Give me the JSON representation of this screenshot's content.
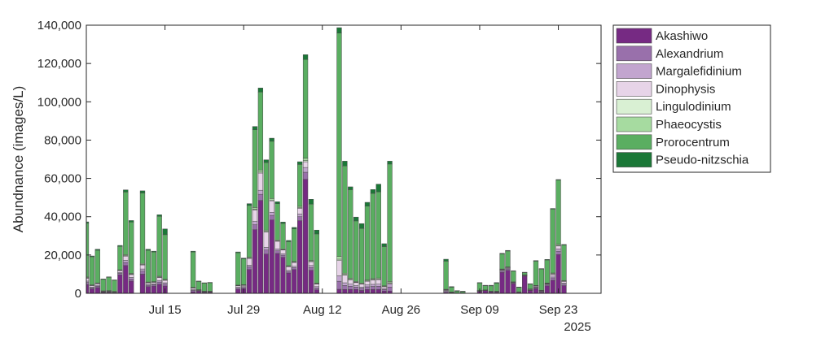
{
  "chart_data": {
    "type": "bar",
    "stacked": true,
    "title": "",
    "xlabel": "",
    "ylabel": "Abundnance (images/L)",
    "year_label": "2025",
    "year": 2025,
    "ylim": [
      0,
      140000
    ],
    "yticks": [
      0,
      20000,
      40000,
      60000,
      80000,
      100000,
      120000,
      140000
    ],
    "ytick_labels": [
      "0",
      "20,000",
      "40,000",
      "60,000",
      "80,000",
      "100,000",
      "120,000",
      "140,000"
    ],
    "xlim": [
      "2025-07-01",
      "2025-09-30"
    ],
    "xticks": [
      {
        "date": "07-15",
        "label": "Jul 15"
      },
      {
        "date": "07-29",
        "label": "Jul 29"
      },
      {
        "date": "08-12",
        "label": "Aug 12"
      },
      {
        "date": "08-26",
        "label": "Aug 26"
      },
      {
        "date": "09-09",
        "label": "Sep 09"
      },
      {
        "date": "09-23",
        "label": "Sep 23"
      }
    ],
    "grid": false,
    "legend_position": "outside-right",
    "series": [
      {
        "name": "Akashiwo",
        "color": "#762a83"
      },
      {
        "name": "Alexandrium",
        "color": "#9970ab"
      },
      {
        "name": "Margalefidinium",
        "color": "#c2a5cf"
      },
      {
        "name": "Dinophysis",
        "color": "#e7d4e8"
      },
      {
        "name": "Lingulodinium",
        "color": "#d9f0d3"
      },
      {
        "name": "Phaeocystis",
        "color": "#a6dba0"
      },
      {
        "name": "Prorocentrum",
        "color": "#5aae61"
      },
      {
        "name": "Pseudo-nitzschia",
        "color": "#1b7837"
      }
    ],
    "bars": [
      {
        "date": "07-01",
        "values": [
          4600,
          1100,
          700,
          1500,
          200,
          400,
          28100,
          700
        ]
      },
      {
        "date": "07-02",
        "values": [
          2300,
          600,
          400,
          800,
          100,
          200,
          14700,
          400
        ]
      },
      {
        "date": "07-03",
        "values": [
          3000,
          700,
          500,
          900,
          100,
          200,
          17100,
          500
        ]
      },
      {
        "date": "07-04",
        "values": [
          500,
          200,
          200,
          300,
          0,
          100,
          6000,
          200
        ]
      },
      {
        "date": "07-05",
        "values": [
          500,
          300,
          200,
          300,
          0,
          100,
          7000,
          200
        ]
      },
      {
        "date": "07-06",
        "values": [
          300,
          200,
          100,
          300,
          0,
          100,
          5900,
          100
        ]
      },
      {
        "date": "07-07",
        "values": [
          9600,
          800,
          500,
          1000,
          100,
          300,
          12200,
          500
        ]
      },
      {
        "date": "07-08",
        "values": [
          14500,
          1600,
          1100,
          2200,
          300,
          500,
          32700,
          1100
        ]
      },
      {
        "date": "07-09",
        "values": [
          6400,
          1100,
          800,
          1500,
          200,
          400,
          26800,
          800
        ]
      },
      {
        "date": "07-11",
        "values": [
          10000,
          1600,
          1100,
          2100,
          300,
          500,
          36800,
          1100
        ]
      },
      {
        "date": "07-12",
        "values": [
          3500,
          700,
          500,
          900,
          100,
          200,
          16600,
          500
        ]
      },
      {
        "date": "07-13",
        "values": [
          3800,
          700,
          400,
          900,
          100,
          200,
          15500,
          400
        ]
      },
      {
        "date": "07-14",
        "values": [
          4700,
          1200,
          800,
          1600,
          200,
          400,
          31300,
          800
        ]
      },
      {
        "date": "07-15",
        "values": [
          3800,
          1000,
          700,
          1300,
          200,
          300,
          23300,
          3000
        ]
      },
      {
        "date": "07-20",
        "values": [
          800,
          700,
          400,
          900,
          100,
          200,
          18500,
          400
        ]
      },
      {
        "date": "07-21",
        "values": [
          1200,
          200,
          100,
          300,
          0,
          100,
          4400,
          100
        ]
      },
      {
        "date": "07-22",
        "values": [
          500,
          200,
          100,
          200,
          0,
          100,
          4300,
          100
        ]
      },
      {
        "date": "07-23",
        "values": [
          500,
          200,
          100,
          200,
          0,
          100,
          4500,
          100
        ]
      },
      {
        "date": "07-28",
        "values": [
          2100,
          600,
          400,
          900,
          100,
          200,
          16900,
          400
        ]
      },
      {
        "date": "07-29",
        "values": [
          2500,
          600,
          400,
          700,
          100,
          200,
          13500,
          400
        ]
      },
      {
        "date": "07-30",
        "values": [
          12400,
          1400,
          900,
          3500,
          200,
          500,
          27000,
          900
        ]
      },
      {
        "date": "07-31",
        "values": [
          33200,
          2600,
          1700,
          6000,
          400,
          900,
          40600,
          1700
        ]
      },
      {
        "date": "08-01",
        "values": [
          48500,
          3200,
          2100,
          9000,
          500,
          1100,
          40700,
          2100
        ]
      },
      {
        "date": "08-02",
        "values": [
          20500,
          2100,
          1400,
          8000,
          300,
          700,
          35300,
          1400
        ]
      },
      {
        "date": "08-03",
        "values": [
          38300,
          2400,
          1600,
          6000,
          400,
          800,
          29900,
          1600
        ]
      },
      {
        "date": "08-04",
        "values": [
          20800,
          1400,
          1000,
          4000,
          200,
          500,
          18900,
          1000
        ]
      },
      {
        "date": "08-05",
        "values": [
          18800,
          1100,
          700,
          2000,
          200,
          400,
          13300,
          700
        ]
      },
      {
        "date": "08-06",
        "values": [
          10600,
          800,
          600,
          2000,
          100,
          300,
          12600,
          600
        ]
      },
      {
        "date": "08-07",
        "values": [
          12400,
          1000,
          700,
          2000,
          200,
          300,
          17100,
          700
        ]
      },
      {
        "date": "08-08",
        "values": [
          37900,
          2100,
          1400,
          3000,
          300,
          700,
          21900,
          1400
        ]
      },
      {
        "date": "08-09",
        "values": [
          59500,
          3700,
          2500,
          3000,
          600,
          1200,
          51600,
          2500
        ]
      },
      {
        "date": "08-10",
        "values": [
          12000,
          1500,
          1000,
          2000,
          200,
          500,
          29400,
          2500
        ]
      },
      {
        "date": "08-11",
        "values": [
          1800,
          1000,
          700,
          1300,
          200,
          300,
          25700,
          2000
        ]
      },
      {
        "date": "08-15",
        "values": [
          2100,
          4200,
          2800,
          8000,
          700,
          1400,
          116700,
          2800
        ]
      },
      {
        "date": "08-16",
        "values": [
          2000,
          2100,
          1400,
          4000,
          300,
          700,
          56000,
          2500
        ]
      },
      {
        "date": "08-17",
        "values": [
          2000,
          1700,
          1100,
          2200,
          300,
          600,
          46200,
          1500
        ]
      },
      {
        "date": "08-18",
        "values": [
          2000,
          1200,
          800,
          1600,
          200,
          400,
          31600,
          2000
        ]
      },
      {
        "date": "08-19",
        "values": [
          1500,
          1100,
          700,
          1500,
          200,
          400,
          28500,
          2500
        ]
      },
      {
        "date": "08-20",
        "values": [
          2000,
          1400,
          1000,
          1900,
          200,
          500,
          38500,
          2000
        ]
      },
      {
        "date": "08-21",
        "values": [
          2000,
          1600,
          1100,
          2200,
          300,
          500,
          44500,
          2000
        ]
      },
      {
        "date": "08-22",
        "values": [
          2000,
          1700,
          1100,
          2300,
          300,
          600,
          45000,
          4000
        ]
      },
      {
        "date": "08-23",
        "values": [
          1200,
          800,
          500,
          1000,
          100,
          300,
          20500,
          1500
        ]
      },
      {
        "date": "08-24",
        "values": [
          1200,
          2100,
          1400,
          500,
          300,
          700,
          61300,
          1500
        ]
      },
      {
        "date": "09-03",
        "values": [
          500,
          500,
          400,
          400,
          100,
          200,
          14700,
          1000
        ]
      },
      {
        "date": "09-04",
        "values": [
          300,
          100,
          100,
          100,
          0,
          100,
          2500,
          300
        ]
      },
      {
        "date": "09-05",
        "values": [
          200,
          0,
          0,
          0,
          0,
          0,
          900,
          300
        ]
      },
      {
        "date": "09-06",
        "values": [
          200,
          0,
          0,
          0,
          0,
          0,
          700,
          200
        ]
      },
      {
        "date": "09-09",
        "values": [
          1000,
          200,
          100,
          100,
          0,
          100,
          3900,
          200
        ]
      },
      {
        "date": "09-10",
        "values": [
          1500,
          100,
          100,
          100,
          0,
          0,
          2200,
          200
        ]
      },
      {
        "date": "09-11",
        "values": [
          800,
          100,
          100,
          100,
          0,
          0,
          2800,
          300
        ]
      },
      {
        "date": "09-12",
        "values": [
          600,
          200,
          100,
          100,
          0,
          100,
          4200,
          300
        ]
      },
      {
        "date": "09-13",
        "values": [
          11000,
          600,
          400,
          400,
          100,
          200,
          7900,
          300
        ]
      },
      {
        "date": "09-14",
        "values": [
          12000,
          700,
          400,
          400,
          100,
          200,
          8300,
          300
        ]
      },
      {
        "date": "09-15",
        "values": [
          5000,
          400,
          200,
          200,
          100,
          100,
          5600,
          200
        ]
      },
      {
        "date": "09-16",
        "values": [
          500,
          100,
          100,
          100,
          0,
          0,
          2400,
          100
        ]
      },
      {
        "date": "09-17",
        "values": [
          8900,
          300,
          200,
          200,
          0,
          100,
          1100,
          200
        ]
      },
      {
        "date": "09-18",
        "values": [
          1500,
          200,
          100,
          400,
          0,
          100,
          2600,
          100
        ]
      },
      {
        "date": "09-19",
        "values": [
          2500,
          500,
          300,
          500,
          100,
          200,
          12700,
          300
        ]
      },
      {
        "date": "09-20",
        "values": [
          500,
          400,
          300,
          200,
          100,
          100,
          11100,
          200
        ]
      },
      {
        "date": "09-21",
        "values": [
          3900,
          500,
          400,
          300,
          100,
          200,
          12000,
          300
        ]
      },
      {
        "date": "09-22",
        "values": [
          6800,
          1300,
          900,
          1000,
          200,
          400,
          33400,
          300
        ]
      },
      {
        "date": "09-23",
        "values": [
          20200,
          1800,
          1200,
          1500,
          300,
          600,
          33500,
          300
        ]
      },
      {
        "date": "09-24",
        "values": [
          4000,
          800,
          500,
          1000,
          100,
          300,
          18500,
          300
        ]
      }
    ]
  }
}
